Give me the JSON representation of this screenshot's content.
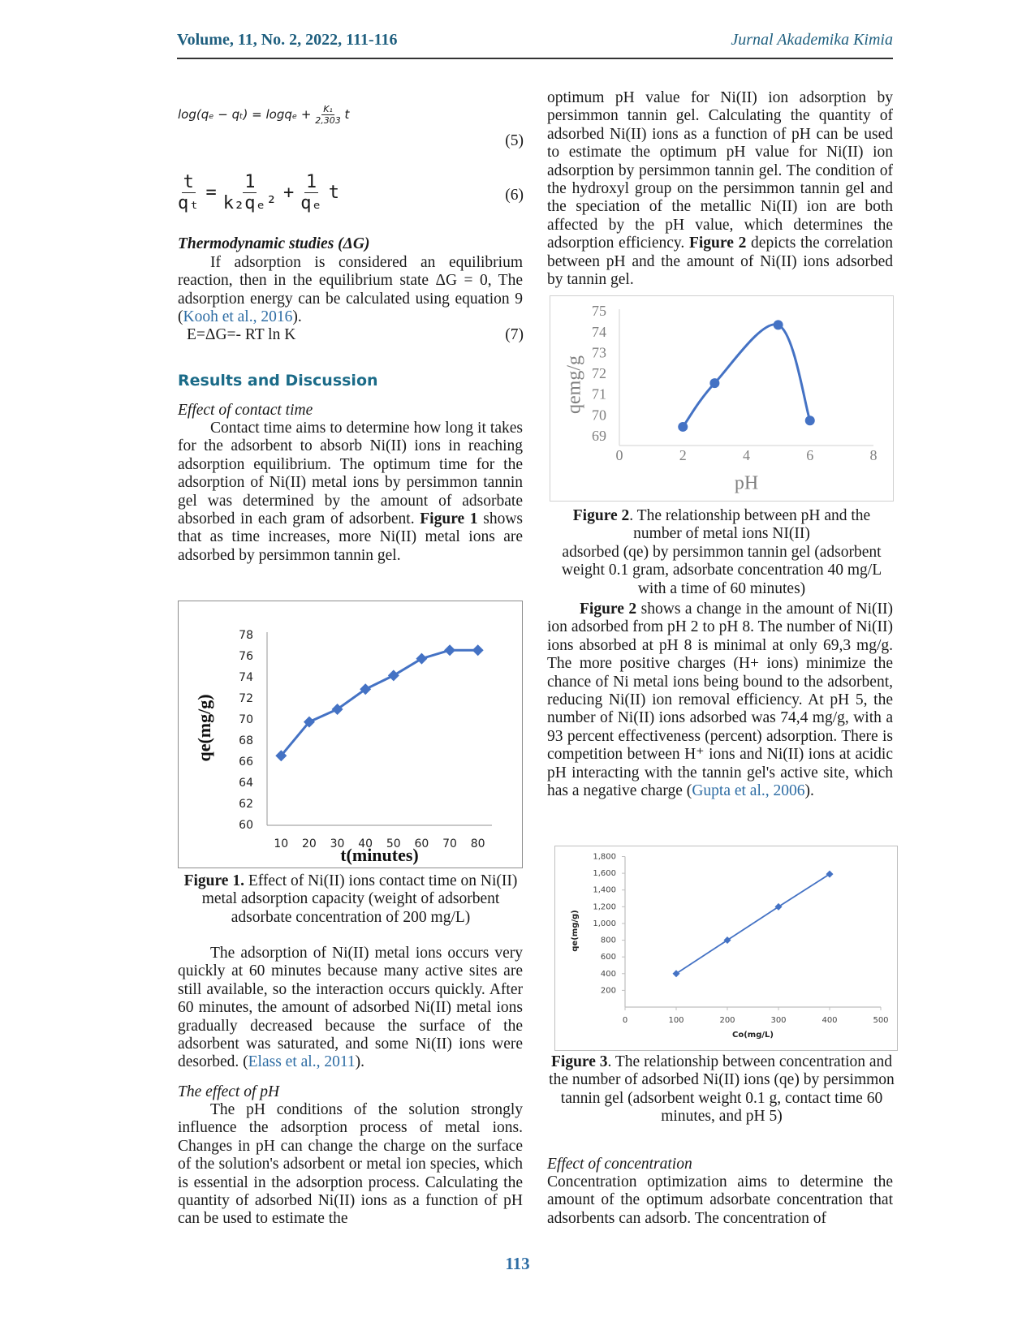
{
  "header": {
    "volume": "Volume, 11, No. 2, 2022, 111-116",
    "journal": "Jurnal Akademika Kimia"
  },
  "left": {
    "eq5": {
      "left": "log(qₑ − qₜ) = logqₑ +",
      "num": "K₁",
      "den": "2,303",
      "right": "t",
      "number": "(5)"
    },
    "eq6": {
      "lhs_num": "t",
      "lhs_den": "qₜ",
      "eq": "=",
      "f1_num": "1",
      "f1_den": "k₂qₑ²",
      "plus": "+",
      "f2_num": "1",
      "f2_den": "qₑ",
      "right": "t",
      "number": "(6)"
    },
    "thermo_heading": "Thermodynamic studies (ΔG)",
    "thermo_para": [
      "If adsorption is considered an equilibrium reaction, then in the equilibrium state ΔG = 0, The adsorption energy can be calculated using equation 9 (",
      "Kooh et al., 2016",
      ")."
    ],
    "eq7": {
      "text": "E=ΔG=- RT ln K",
      "number": "(7)"
    },
    "results_heading": "Results and Discussion",
    "contact_heading": "Effect of contact time",
    "contact_para": [
      "Contact time aims to determine how long it takes for the adsorbent to absorb Ni(II) ions in reaching adsorption equilibrium. The optimum time for the adsorption of Ni(II) metal ions by persimmon tannin gel was determined by the amount of adsorbate absorbed in each gram of adsorbent. ",
      "Figure 1",
      " shows that as time increases, more Ni(II) metal ions are adsorbed by persimmon tannin gel."
    ],
    "fig1_caption": [
      "Figure 1.",
      " Effect of Ni(II) ions contact time on Ni(II) metal adsorption capacity (weight of adsorbent adsorbate concentration of 200 mg/L)"
    ],
    "adsorption_para": [
      "The adsorption of Ni(II) metal ions occurs very quickly at 60 minutes because many active sites are still available, so the interaction occurs quickly. After 60 minutes, the amount of adsorbed Ni(II) metal ions gradually decreased because the surface of the adsorbent was saturated, and some Ni(II) ions were desorbed. (",
      "Elass et al., 2011",
      ")."
    ],
    "ph_heading": "The effect of pH",
    "ph_para": "The pH conditions of the solution strongly influence the adsorption process of metal ions. Changes in pH can change the charge on the surface of the solution's adsorbent or metal ion species, which is essential in the adsorption process. Calculating the quantity of adsorbed Ni(II) ions as a function of pH can be used to estimate the"
  },
  "right": {
    "intro_para": [
      "optimum pH value for Ni(II) ion adsorption by persimmon tannin gel. Calculating the quantity of adsorbed Ni(II) ions as a function of pH can be used to estimate the optimum pH value for Ni(II) ion adsorption by persimmon tannin gel. The condition of the hydroxyl group on the persimmon tannin gel and the speciation of the metallic Ni(II) ion are both affected by the pH value, which determines the adsorption efficiency. ",
      "Figure 2",
      " depicts the correlation between pH and the amount of Ni(II) ions adsorbed by tannin gel."
    ],
    "fig2_caption": [
      "Figure 2",
      ". The relationship between pH and the number of metal ions NI(II)",
      "adsorbed (qe) by persimmon tannin gel (adsorbent weight 0.1 gram, adsorbate concentration 40 mg/L with a time of 60 minutes)"
    ],
    "ph_results_para": [
      "Figure 2",
      " shows a change in the amount of Ni(II) ion adsorbed from pH 2 to pH 8. The number of Ni(II) ions absorbed at pH 8 is minimal at only 69,3 mg/g. The more positive charges (H+ ions) minimize the chance of Ni metal ions being bound to the adsorbent, reducing Ni(II) ion removal efficiency. At pH 5, the number of Ni(II) ions adsorbed was 74,4 mg/g, with a 93 percent effectiveness (percent) adsorption. There is competition between H⁺ ions and Ni(II) ions at acidic pH interacting with the tannin gel's active site, which has a negative charge (",
      "Gupta et al., 2006",
      ")."
    ],
    "fig3_caption": [
      "Figure 3",
      ". The relationship between concentration and the number of adsorbed Ni(II) ions (qe) by persimmon tannin gel (adsorbent weight 0.1 g, contact time 60 minutes, and pH 5)"
    ],
    "conc_heading": "Effect of concentration",
    "conc_para": "Concentration optimization aims to determine the amount of the optimum adsorbate concentration that adsorbents can adsorb. The concentration of"
  },
  "page_number": "113",
  "chart_data": [
    {
      "type": "line",
      "categories": [
        "10",
        "20",
        "30",
        "40",
        "50",
        "60",
        "70",
        "80"
      ],
      "values": [
        66.6,
        69.8,
        71.0,
        72.9,
        74.2,
        75.8,
        76.6,
        76.6
      ],
      "color": "#4472c4",
      "marker": "diamond",
      "xlabel": "t(minutes)",
      "ylabel": "qe(mg/g)",
      "ylim": [
        60,
        78
      ],
      "yticks": [
        60,
        62,
        64,
        66,
        68,
        70,
        72,
        74,
        76,
        78
      ]
    },
    {
      "type": "scatter",
      "smooth": true,
      "x": [
        2,
        3,
        5,
        6
      ],
      "y": [
        69.5,
        71.6,
        74.4,
        69.8
      ],
      "color": "#4472c4",
      "marker": "circle",
      "xlabel": "pH",
      "ylabel": "qemg/g",
      "xlim": [
        0,
        8
      ],
      "xticks": [
        0,
        2,
        4,
        6,
        8
      ],
      "ylim": [
        68.6,
        75
      ],
      "yticks": [
        69,
        70,
        71,
        72,
        73,
        74,
        75
      ]
    },
    {
      "type": "scatter",
      "smooth": false,
      "x": [
        100,
        200,
        300,
        400
      ],
      "y": [
        400,
        800,
        1200,
        1590
      ],
      "color": "#4472c4",
      "marker": "diamond",
      "xlabel": "Co(mg/L)",
      "ylabel": "qe(mg/g)",
      "xlim": [
        0,
        500
      ],
      "xticks": [
        0,
        100,
        200,
        300,
        400,
        500
      ],
      "ylim": [
        0,
        1800
      ],
      "yticks": [
        200,
        400,
        600,
        800,
        {
          "value": 1000,
          "label": "1,000"
        },
        {
          "value": 1200,
          "label": "1,200"
        },
        {
          "value": 1400,
          "label": "1,400"
        },
        {
          "value": 1600,
          "label": "1,600"
        },
        {
          "value": 1800,
          "label": "1,800"
        }
      ]
    }
  ]
}
